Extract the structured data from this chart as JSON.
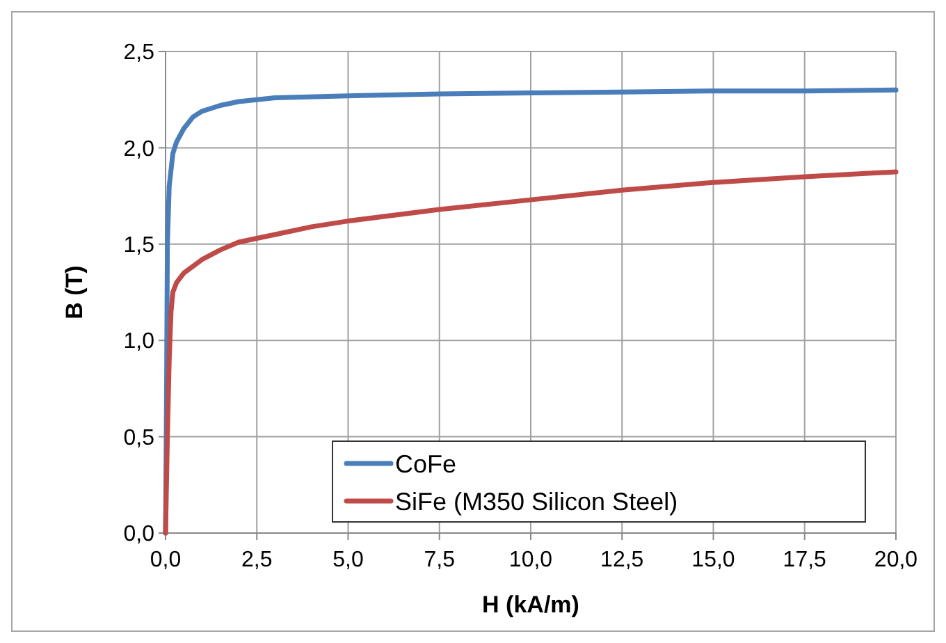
{
  "chart_data": {
    "type": "line",
    "xlabel": "H (kA/m)",
    "ylabel": "B (T)",
    "xlim": [
      0,
      20
    ],
    "ylim": [
      0,
      2.5
    ],
    "xticks": [
      {
        "value": 0,
        "label": "0,0"
      },
      {
        "value": 2.5,
        "label": "2,5"
      },
      {
        "value": 5,
        "label": "5,0"
      },
      {
        "value": 7.5,
        "label": "7,5"
      },
      {
        "value": 10,
        "label": "10,0"
      },
      {
        "value": 12.5,
        "label": "12,5"
      },
      {
        "value": 15,
        "label": "15,0"
      },
      {
        "value": 17.5,
        "label": "17,5"
      },
      {
        "value": 20,
        "label": "20,0"
      }
    ],
    "yticks": [
      {
        "value": 0,
        "label": "0,0"
      },
      {
        "value": 0.5,
        "label": "0,5"
      },
      {
        "value": 1,
        "label": "1,0"
      },
      {
        "value": 1.5,
        "label": "1,5"
      },
      {
        "value": 2,
        "label": "2,0"
      },
      {
        "value": 2.5,
        "label": "2,5"
      }
    ],
    "grid": true,
    "legend": "bottom right",
    "marker": "none",
    "line_style": "solid",
    "series": [
      {
        "name": "CoFe",
        "color": "#4a7ebb",
        "x": [
          0,
          0.03,
          0.05,
          0.1,
          0.2,
          0.3,
          0.5,
          0.75,
          1,
          1.5,
          2,
          2.5,
          3,
          5,
          7.5,
          10,
          12.5,
          15,
          17.5,
          20
        ],
        "values": [
          0,
          0.8,
          1.5,
          1.8,
          1.97,
          2.03,
          2.1,
          2.16,
          2.19,
          2.22,
          2.24,
          2.25,
          2.26,
          2.27,
          2.28,
          2.285,
          2.29,
          2.295,
          2.295,
          2.3
        ]
      },
      {
        "name": "SiFe (M350 Silicon Steel)",
        "color": "#be4b48",
        "x": [
          0,
          0.05,
          0.1,
          0.15,
          0.2,
          0.3,
          0.5,
          1,
          1.5,
          2,
          2.5,
          3,
          4,
          5,
          7.5,
          10,
          12.5,
          15,
          17.5,
          20
        ],
        "values": [
          0,
          0.5,
          0.9,
          1.15,
          1.25,
          1.3,
          1.35,
          1.42,
          1.47,
          1.51,
          1.53,
          1.55,
          1.59,
          1.62,
          1.68,
          1.73,
          1.78,
          1.82,
          1.85,
          1.875
        ]
      }
    ]
  }
}
